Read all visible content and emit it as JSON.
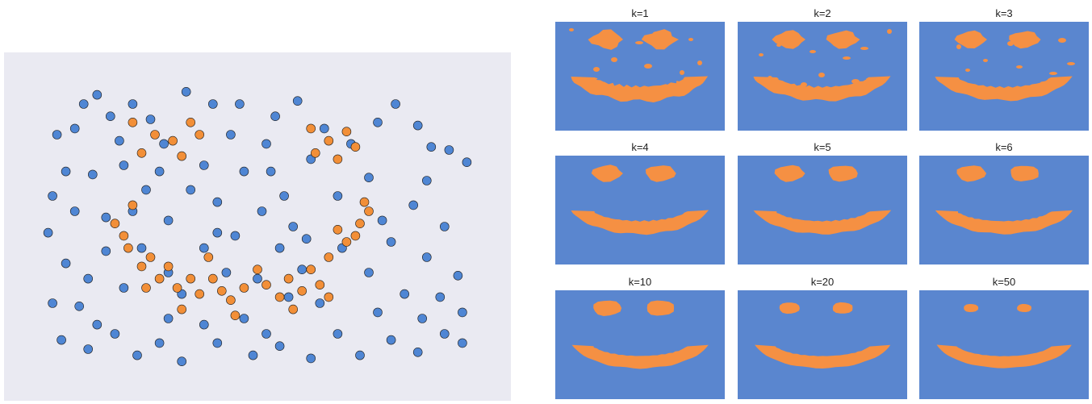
{
  "colors": {
    "scatter_background": "#eaeaf2",
    "class_blue": "#4f86d4",
    "class_orange": "#f28f38",
    "panel_blue": "#5a86cf",
    "panel_orange": "#f59043",
    "marker_edge": "#1f1f1f"
  },
  "chart_data": [
    {
      "type": "scatter",
      "title": "",
      "xlabel": "",
      "ylabel": "",
      "xlim": [
        0,
        1
      ],
      "ylim": [
        0,
        1
      ],
      "grid": false,
      "legend": "none",
      "series": [
        {
          "color": "#4f86d4",
          "points": [
            [
              0.14,
              0.93
            ],
            [
              0.22,
              0.9
            ],
            [
              0.09,
              0.82
            ],
            [
              0.05,
              0.8
            ],
            [
              0.17,
              0.86
            ],
            [
              0.26,
              0.85
            ],
            [
              0.34,
              0.94
            ],
            [
              0.46,
              0.9
            ],
            [
              0.59,
              0.91
            ],
            [
              0.81,
              0.9
            ],
            [
              0.86,
              0.83
            ],
            [
              0.93,
              0.75
            ],
            [
              0.97,
              0.71
            ],
            [
              0.88,
              0.65
            ],
            [
              0.04,
              0.6
            ],
            [
              0.09,
              0.55
            ],
            [
              0.16,
              0.53
            ],
            [
              0.03,
              0.48
            ],
            [
              0.07,
              0.38
            ],
            [
              0.12,
              0.33
            ],
            [
              0.1,
              0.24
            ],
            [
              0.06,
              0.13
            ],
            [
              0.12,
              0.1
            ],
            [
              0.18,
              0.15
            ],
            [
              0.23,
              0.08
            ],
            [
              0.28,
              0.12
            ],
            [
              0.33,
              0.06
            ],
            [
              0.41,
              0.12
            ],
            [
              0.49,
              0.08
            ],
            [
              0.55,
              0.11
            ],
            [
              0.62,
              0.07
            ],
            [
              0.68,
              0.15
            ],
            [
              0.73,
              0.08
            ],
            [
              0.8,
              0.13
            ],
            [
              0.86,
              0.09
            ],
            [
              0.92,
              0.15
            ],
            [
              0.96,
              0.12
            ],
            [
              0.91,
              0.27
            ],
            [
              0.95,
              0.34
            ],
            [
              0.88,
              0.4
            ],
            [
              0.92,
              0.5
            ],
            [
              0.85,
              0.57
            ],
            [
              0.78,
              0.52
            ],
            [
              0.3,
              0.52
            ],
            [
              0.35,
              0.62
            ],
            [
              0.41,
              0.58
            ],
            [
              0.38,
              0.7
            ],
            [
              0.29,
              0.77
            ],
            [
              0.44,
              0.8
            ],
            [
              0.52,
              0.77
            ],
            [
              0.56,
              0.6
            ],
            [
              0.62,
              0.72
            ],
            [
              0.65,
              0.82
            ],
            [
              0.71,
              0.77
            ],
            [
              0.75,
              0.66
            ],
            [
              0.47,
              0.68
            ],
            [
              0.51,
              0.55
            ],
            [
              0.45,
              0.47
            ],
            [
              0.38,
              0.43
            ],
            [
              0.55,
              0.43
            ],
            [
              0.58,
              0.5
            ],
            [
              0.25,
              0.62
            ],
            [
              0.2,
              0.7
            ],
            [
              0.13,
              0.67
            ],
            [
              0.19,
              0.78
            ],
            [
              0.24,
              0.43
            ],
            [
              0.3,
              0.35
            ],
            [
              0.43,
              0.35
            ],
            [
              0.5,
              0.33
            ],
            [
              0.6,
              0.36
            ],
            [
              0.75,
              0.35
            ],
            [
              0.83,
              0.28
            ],
            [
              0.8,
              0.45
            ],
            [
              0.16,
              0.42
            ],
            [
              0.2,
              0.3
            ],
            [
              0.14,
              0.18
            ],
            [
              0.38,
              0.18
            ],
            [
              0.47,
              0.2
            ],
            [
              0.52,
              0.15
            ],
            [
              0.3,
              0.2
            ],
            [
              0.77,
              0.22
            ],
            [
              0.87,
              0.2
            ],
            [
              0.89,
              0.76
            ],
            [
              0.77,
              0.84
            ],
            [
              0.11,
              0.9
            ],
            [
              0.07,
              0.68
            ],
            [
              0.04,
              0.25
            ],
            [
              0.96,
              0.22
            ],
            [
              0.64,
              0.25
            ],
            [
              0.33,
              0.28
            ],
            [
              0.57,
              0.27
            ],
            [
              0.68,
              0.6
            ],
            [
              0.53,
              0.68
            ],
            [
              0.28,
              0.68
            ],
            [
              0.22,
              0.55
            ],
            [
              0.41,
              0.48
            ],
            [
              0.61,
              0.46
            ],
            [
              0.69,
              0.43
            ],
            [
              0.4,
              0.9
            ],
            [
              0.54,
              0.86
            ]
          ]
        },
        {
          "color": "#f28f38",
          "points": [
            [
              0.22,
              0.84
            ],
            [
              0.27,
              0.8
            ],
            [
              0.31,
              0.78
            ],
            [
              0.35,
              0.84
            ],
            [
              0.37,
              0.8
            ],
            [
              0.24,
              0.74
            ],
            [
              0.33,
              0.73
            ],
            [
              0.62,
              0.82
            ],
            [
              0.66,
              0.78
            ],
            [
              0.7,
              0.81
            ],
            [
              0.63,
              0.74
            ],
            [
              0.68,
              0.72
            ],
            [
              0.72,
              0.76
            ],
            [
              0.18,
              0.51
            ],
            [
              0.21,
              0.43
            ],
            [
              0.24,
              0.37
            ],
            [
              0.28,
              0.33
            ],
            [
              0.32,
              0.3
            ],
            [
              0.37,
              0.28
            ],
            [
              0.42,
              0.29
            ],
            [
              0.47,
              0.3
            ],
            [
              0.52,
              0.31
            ],
            [
              0.57,
              0.33
            ],
            [
              0.62,
              0.36
            ],
            [
              0.66,
              0.4
            ],
            [
              0.7,
              0.45
            ],
            [
              0.73,
              0.51
            ],
            [
              0.75,
              0.55
            ],
            [
              0.72,
              0.47
            ],
            [
              0.26,
              0.4
            ],
            [
              0.35,
              0.33
            ],
            [
              0.44,
              0.26
            ],
            [
              0.55,
              0.27
            ],
            [
              0.64,
              0.31
            ],
            [
              0.2,
              0.47
            ],
            [
              0.3,
              0.37
            ],
            [
              0.5,
              0.36
            ],
            [
              0.68,
              0.49
            ],
            [
              0.4,
              0.33
            ],
            [
              0.6,
              0.29
            ],
            [
              0.25,
              0.3
            ],
            [
              0.33,
              0.23
            ],
            [
              0.45,
              0.21
            ],
            [
              0.58,
              0.23
            ],
            [
              0.66,
              0.27
            ],
            [
              0.22,
              0.57
            ],
            [
              0.74,
              0.58
            ],
            [
              0.39,
              0.4
            ]
          ]
        }
      ]
    },
    {
      "type": "heatmap",
      "panels": [
        {
          "title": "k=1",
          "k": 1
        },
        {
          "title": "k=2",
          "k": 2
        },
        {
          "title": "k=3",
          "k": 3
        },
        {
          "title": "k=4",
          "k": 4
        },
        {
          "title": "k=5",
          "k": 5
        },
        {
          "title": "k=6",
          "k": 6
        },
        {
          "title": "k=10",
          "k": 10
        },
        {
          "title": "k=20",
          "k": 20
        },
        {
          "title": "k=50",
          "k": 50
        }
      ],
      "classes": [
        {
          "color": "#5a86cf"
        },
        {
          "color": "#f59043"
        }
      ]
    }
  ]
}
